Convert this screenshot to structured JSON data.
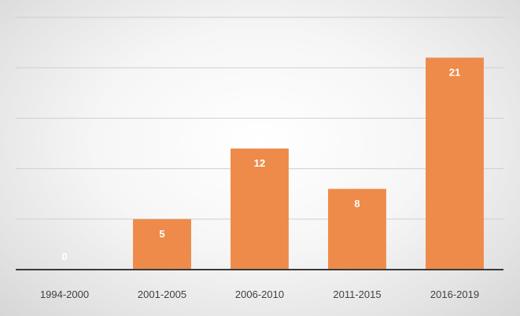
{
  "chart_data": {
    "type": "bar",
    "categories": [
      "1994-2000",
      "2001-2005",
      "2006-2010",
      "2011-2015",
      "2016-2019"
    ],
    "values": [
      0,
      5,
      12,
      8,
      21
    ],
    "title": "",
    "xlabel": "",
    "ylabel": "",
    "ylim": [
      0,
      25
    ],
    "grid": true,
    "legend": "none",
    "data_labels": true,
    "colors": {
      "bar": "#ee8b4a",
      "label_on_bar": "#ffffff",
      "label_zero": "#ffffff",
      "gridline": "#cfcfcf",
      "baseline": "#3a3a3a"
    }
  }
}
